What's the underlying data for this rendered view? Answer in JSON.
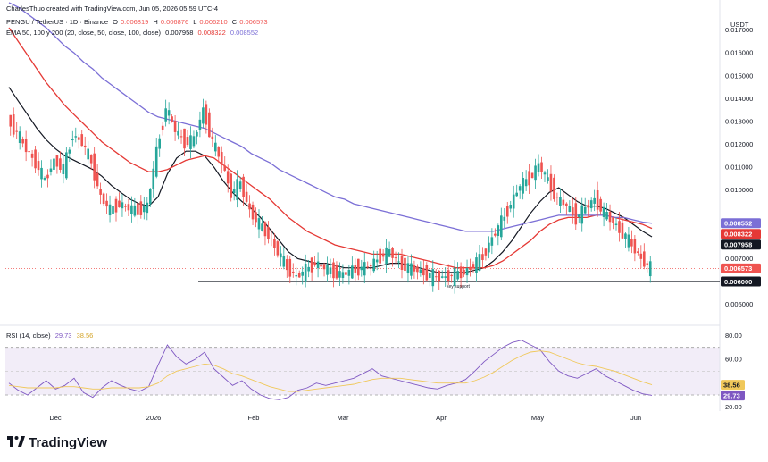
{
  "header": {
    "created_by": "CharlesThuo created with TradingView.com, Jun 05, 2026 05:59 UTC-4",
    "symbol": "PENGU / TetherUS · 1D · Binance",
    "ohlc": {
      "o_label": "O",
      "o": "0.006819",
      "h_label": "H",
      "h": "0.006876",
      "l_label": "L",
      "l": "0.006210",
      "c_label": "C",
      "c": "0.006573"
    },
    "ema_title": "EMA 50, 100 y 200 (20, close, 50, close, 100, close)",
    "ema_values": [
      "0.007958",
      "0.008322",
      "0.008552"
    ]
  },
  "rsi_header": {
    "title": "RSI (14, close)",
    "values": [
      "29.73",
      "38.56"
    ]
  },
  "footer": {
    "logo_text": "TradingView"
  },
  "colors": {
    "up": "#26a69a",
    "down": "#ef5350",
    "ema_fast": "#131722",
    "ema_mid": "#e53935",
    "ema_slow": "#7b6fd6",
    "rsi_line": "#7e57c2",
    "rsi_ma": "#f0c85a",
    "support": "#131722"
  },
  "chart_data": [
    {
      "type": "candlestick",
      "title": "PENGU / TetherUS · 1D · Binance",
      "ylabel": "USDT",
      "y_ticks": [
        "0.017000",
        "0.016000",
        "0.015000",
        "0.014000",
        "0.013000",
        "0.012000",
        "0.011000",
        "0.010000",
        "0.007000",
        "0.005000"
      ],
      "x_ticks": [
        "Dec",
        "2026",
        "Feb",
        "Mar",
        "Apr",
        "May",
        "Jun"
      ],
      "ylim": [
        0.0044,
        0.018
      ],
      "support_level": 0.006,
      "support_label": "key support",
      "price_labels": [
        {
          "value": 0.008552,
          "text": "0.008552",
          "series": "EMA 200"
        },
        {
          "value": 0.008322,
          "text": "0.008322",
          "series": "EMA 100"
        },
        {
          "value": 0.007958,
          "text": "0.007958",
          "series": "EMA 50"
        },
        {
          "value": 0.006573,
          "text": "0.006573",
          "series": "last price"
        },
        {
          "value": 0.006,
          "text": "0.006000",
          "series": "key support"
        }
      ],
      "close_path": [
        0.0131,
        0.0125,
        0.0118,
        0.0112,
        0.0104,
        0.0113,
        0.0109,
        0.0124,
        0.0121,
        0.0112,
        0.0097,
        0.0091,
        0.0094,
        0.0092,
        0.0091,
        0.0093,
        0.0117,
        0.0136,
        0.0126,
        0.0121,
        0.0122,
        0.0135,
        0.0121,
        0.0112,
        0.0099,
        0.0103,
        0.0091,
        0.0085,
        0.008,
        0.0073,
        0.0066,
        0.0062,
        0.0065,
        0.0068,
        0.0066,
        0.0064,
        0.0063,
        0.0065,
        0.0066,
        0.0067,
        0.0071,
        0.0073,
        0.0068,
        0.0066,
        0.0065,
        0.0063,
        0.0062,
        0.0062,
        0.0063,
        0.0064,
        0.0067,
        0.0071,
        0.0079,
        0.0086,
        0.0094,
        0.0102,
        0.0105,
        0.0111,
        0.0104,
        0.0096,
        0.0093,
        0.0088,
        0.0092,
        0.0096,
        0.009,
        0.0086,
        0.0081,
        0.0076,
        0.007,
        0.00657
      ],
      "series": [
        {
          "name": "EMA 50",
          "values": [
            0.0145,
            0.0139,
            0.0133,
            0.0127,
            0.0122,
            0.0118,
            0.0115,
            0.0113,
            0.0111,
            0.0109,
            0.0106,
            0.0102,
            0.0099,
            0.0096,
            0.0094,
            0.0093,
            0.0097,
            0.0107,
            0.0114,
            0.0117,
            0.0117,
            0.0115,
            0.011,
            0.0104,
            0.0099,
            0.0095,
            0.0092,
            0.0088,
            0.0083,
            0.0078,
            0.0073,
            0.007,
            0.0069,
            0.0068,
            0.0068,
            0.0067,
            0.0066,
            0.0066,
            0.0066,
            0.0066,
            0.0067,
            0.0068,
            0.0068,
            0.0067,
            0.0066,
            0.0065,
            0.0064,
            0.0064,
            0.0064,
            0.0064,
            0.0065,
            0.0066,
            0.0069,
            0.0073,
            0.0078,
            0.0084,
            0.009,
            0.0095,
            0.0099,
            0.0101,
            0.0098,
            0.0095,
            0.0093,
            0.0093,
            0.0092,
            0.009,
            0.0088,
            0.0085,
            0.0082,
            0.007958
          ]
        },
        {
          "name": "EMA 100",
          "values": [
            0.0171,
            0.0165,
            0.0159,
            0.0153,
            0.0147,
            0.0142,
            0.0137,
            0.0133,
            0.0129,
            0.0125,
            0.0121,
            0.0118,
            0.0115,
            0.0112,
            0.011,
            0.0108,
            0.0108,
            0.0109,
            0.0111,
            0.0113,
            0.0114,
            0.0115,
            0.0114,
            0.0111,
            0.0108,
            0.0105,
            0.0102,
            0.0099,
            0.0096,
            0.0092,
            0.0088,
            0.0085,
            0.0082,
            0.008,
            0.0078,
            0.0076,
            0.0075,
            0.0074,
            0.0073,
            0.0072,
            0.0072,
            0.0072,
            0.0072,
            0.0071,
            0.007,
            0.0069,
            0.0068,
            0.0067,
            0.0066,
            0.0066,
            0.0066,
            0.0066,
            0.0067,
            0.0069,
            0.0072,
            0.0075,
            0.0078,
            0.0082,
            0.0085,
            0.0087,
            0.0088,
            0.0088,
            0.0088,
            0.0089,
            0.0089,
            0.0088,
            0.0087,
            0.0086,
            0.0085,
            0.008322
          ]
        },
        {
          "name": "EMA 200",
          "values": [
            0.0182,
            0.018,
            0.0177,
            0.0174,
            0.0171,
            0.0167,
            0.0163,
            0.016,
            0.0156,
            0.0153,
            0.0149,
            0.0146,
            0.0143,
            0.014,
            0.0137,
            0.0134,
            0.0132,
            0.0131,
            0.013,
            0.0129,
            0.0128,
            0.0127,
            0.0125,
            0.0123,
            0.0121,
            0.0119,
            0.0116,
            0.0114,
            0.0112,
            0.0109,
            0.0107,
            0.0105,
            0.0103,
            0.0101,
            0.0099,
            0.0097,
            0.0096,
            0.0094,
            0.0093,
            0.0092,
            0.0091,
            0.009,
            0.0089,
            0.0088,
            0.0087,
            0.0086,
            0.0085,
            0.0084,
            0.0083,
            0.0082,
            0.0082,
            0.0082,
            0.0082,
            0.0083,
            0.0084,
            0.0085,
            0.0086,
            0.0087,
            0.0088,
            0.0089,
            0.0089,
            0.0089,
            0.0089,
            0.0089,
            0.0089,
            0.0088,
            0.0088,
            0.0087,
            0.0086,
            0.008552
          ]
        }
      ]
    },
    {
      "type": "line",
      "title": "RSI (14, close)",
      "y_ticks": [
        "80.00",
        "60.00",
        "20.00"
      ],
      "ylim": [
        18,
        84
      ],
      "band": [
        30,
        70
      ],
      "last_values": {
        "rsi": 29.73,
        "ma": 38.56
      },
      "series": [
        {
          "name": "RSI",
          "values": [
            40,
            34,
            30,
            36,
            42,
            35,
            38,
            44,
            32,
            28,
            36,
            42,
            38,
            35,
            33,
            37,
            55,
            72,
            62,
            56,
            60,
            66,
            52,
            45,
            38,
            42,
            35,
            30,
            27,
            26,
            28,
            34,
            36,
            40,
            38,
            40,
            42,
            44,
            48,
            52,
            46,
            44,
            42,
            40,
            38,
            36,
            35,
            38,
            40,
            43,
            50,
            58,
            64,
            70,
            74,
            76,
            72,
            68,
            58,
            50,
            46,
            44,
            48,
            52,
            46,
            42,
            38,
            34,
            31,
            29.73
          ]
        },
        {
          "name": "MA",
          "values": [
            38,
            37,
            36,
            36,
            36,
            36,
            37,
            37,
            36,
            35,
            35,
            36,
            36,
            36,
            36,
            37,
            40,
            46,
            50,
            52,
            54,
            56,
            55,
            52,
            48,
            46,
            43,
            40,
            37,
            35,
            33,
            33,
            34,
            35,
            36,
            37,
            38,
            39,
            41,
            43,
            44,
            44,
            44,
            43,
            42,
            41,
            40,
            40,
            40,
            40,
            42,
            45,
            49,
            54,
            59,
            63,
            66,
            67,
            66,
            63,
            60,
            57,
            55,
            54,
            52,
            50,
            47,
            44,
            41,
            38.56
          ]
        }
      ]
    }
  ]
}
